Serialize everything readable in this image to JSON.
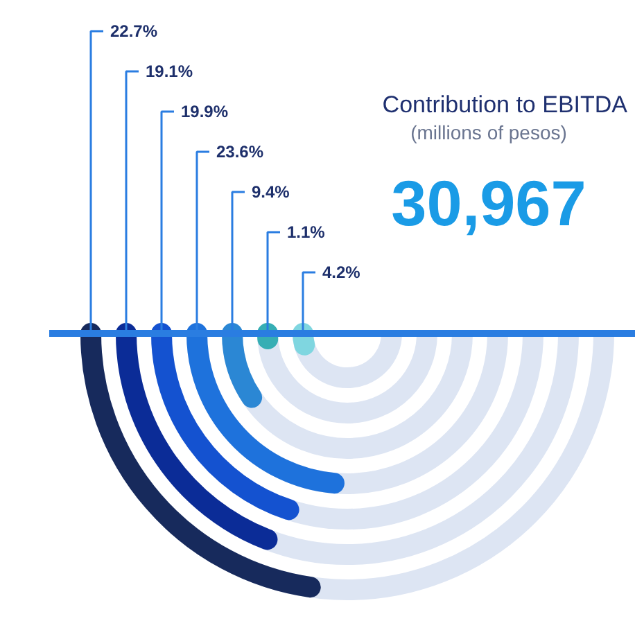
{
  "chart_data": {
    "type": "other",
    "title": "Contribution to EBITDA",
    "subtitle": "(millions of pesos)",
    "annotations": [
      "30,967"
    ],
    "categories": [
      null,
      null,
      null,
      null,
      null,
      null,
      null
    ],
    "values": [
      22.7,
      19.1,
      19.9,
      23.6,
      9.4,
      1.1,
      4.2
    ],
    "value_labels": [
      "22.7%",
      "19.1%",
      "19.9%",
      "23.6%",
      "9.4%",
      "1.1%",
      "4.2%"
    ],
    "colors": [
      "#172a5c",
      "#0b2c97",
      "#1452d0",
      "#1e72dc",
      "#2b87d4",
      "#36aeb4",
      "#7fd6e0"
    ]
  }
}
